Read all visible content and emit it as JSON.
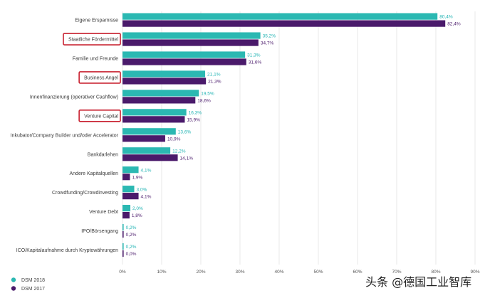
{
  "chart_data": {
    "type": "bar",
    "orientation": "horizontal",
    "categories": [
      "Eigene Ersparnisse",
      "Staatliche Fördermittel",
      "Familie und Freunde",
      "Business Angel",
      "Innenfinanzierung (operativer Cashflow)",
      "Venture Capital",
      "Inkubator/Company Builder und/oder Accelerator",
      "Bankdarlehen",
      "Andere Kapitalquellen",
      "Crowdfunding/Crowdinvesting",
      "Venture Debt",
      "IPO/Börsengang",
      "ICO/Kapitalaufnahme durch Kryptowährungen"
    ],
    "series": [
      {
        "name": "DSM 2018",
        "color": "#2bb8b2",
        "values": [
          80.4,
          35.2,
          31.3,
          21.1,
          19.5,
          16.3,
          13.6,
          12.2,
          4.1,
          3.0,
          2.0,
          0.2,
          0.2
        ],
        "labels": [
          "80,4%",
          "35,2%",
          "31,3%",
          "21,1%",
          "19,5%",
          "16,3%",
          "13,6%",
          "12,2%",
          "4,1%",
          "3,0%",
          "2,0%",
          "0,2%",
          "0,2%"
        ]
      },
      {
        "name": "DSM 2017",
        "color": "#4a1a6b",
        "values": [
          82.4,
          34.7,
          31.6,
          21.3,
          18.6,
          15.9,
          10.9,
          14.1,
          1.9,
          4.1,
          1.8,
          0.2,
          0.0
        ],
        "labels": [
          "82,4%",
          "34,7%",
          "31,6%",
          "21,3%",
          "18,6%",
          "15,9%",
          "10,9%",
          "14,1%",
          "1,9%",
          "4,1%",
          "1,8%",
          "0,2%",
          "0,0%"
        ]
      }
    ],
    "xlim": [
      0,
      90
    ],
    "xticks": [
      0,
      10,
      20,
      30,
      40,
      50,
      60,
      70,
      80,
      90
    ],
    "xtick_labels": [
      "0%",
      "10%",
      "20%",
      "30%",
      "40%",
      "50%",
      "60%",
      "70%",
      "80%",
      "90%"
    ],
    "grid": true,
    "legend_position": "bottom-left",
    "highlighted_categories": [
      "Staatliche Fördermittel",
      "Business Angel",
      "Venture Capital"
    ],
    "highlight_color": "#c8202f",
    "title": "",
    "xlabel": "",
    "ylabel": ""
  },
  "watermark": "头条 @德国工业智库"
}
